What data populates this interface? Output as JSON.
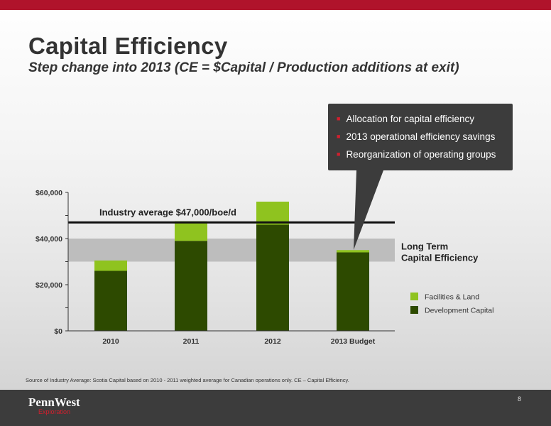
{
  "slide": {
    "title": "Capital Efficiency",
    "subtitle": "Step change into 2013  (CE = $Capital / Production additions at exit)",
    "callout_bullets": [
      "Allocation for capital efficiency",
      "2013 operational efficiency savings",
      "Reorganization of operating groups"
    ],
    "source_note": "Source of Industry Average: Scotia Capital based on 2010 - 2011 weighted average for Canadian operations only. CE – Capital Efficiency.",
    "page_number": "8",
    "logo": {
      "main": "PennWest",
      "sub": "Exploration"
    },
    "colors": {
      "brand_red": "#b0132b",
      "dark_bar": "#3c3c3c"
    }
  },
  "chart_data": {
    "type": "bar",
    "stacked": true,
    "categories": [
      "2010",
      "2011",
      "2012",
      "2013 Budget"
    ],
    "series": [
      {
        "name": "Development Capital",
        "color": "#2d4a00",
        "values": [
          26000,
          39000,
          46000,
          34000
        ]
      },
      {
        "name": "Facilities & Land",
        "color": "#8fc31f",
        "values": [
          4500,
          8500,
          10000,
          1000
        ]
      }
    ],
    "ylim": [
      0,
      60000
    ],
    "yticks": [
      0,
      20000,
      40000,
      60000
    ],
    "ytick_labels": [
      "$0",
      "$20,000",
      "$40,000",
      "$60,000"
    ],
    "reference_line": {
      "label": "Industry average $47,000/boe/d",
      "value": 47000
    },
    "band": {
      "label_line1": "Long Term",
      "label_line2": "Capital Efficiency",
      "from": 30000,
      "to": 40000
    },
    "legend_position": "right",
    "grid": false
  }
}
